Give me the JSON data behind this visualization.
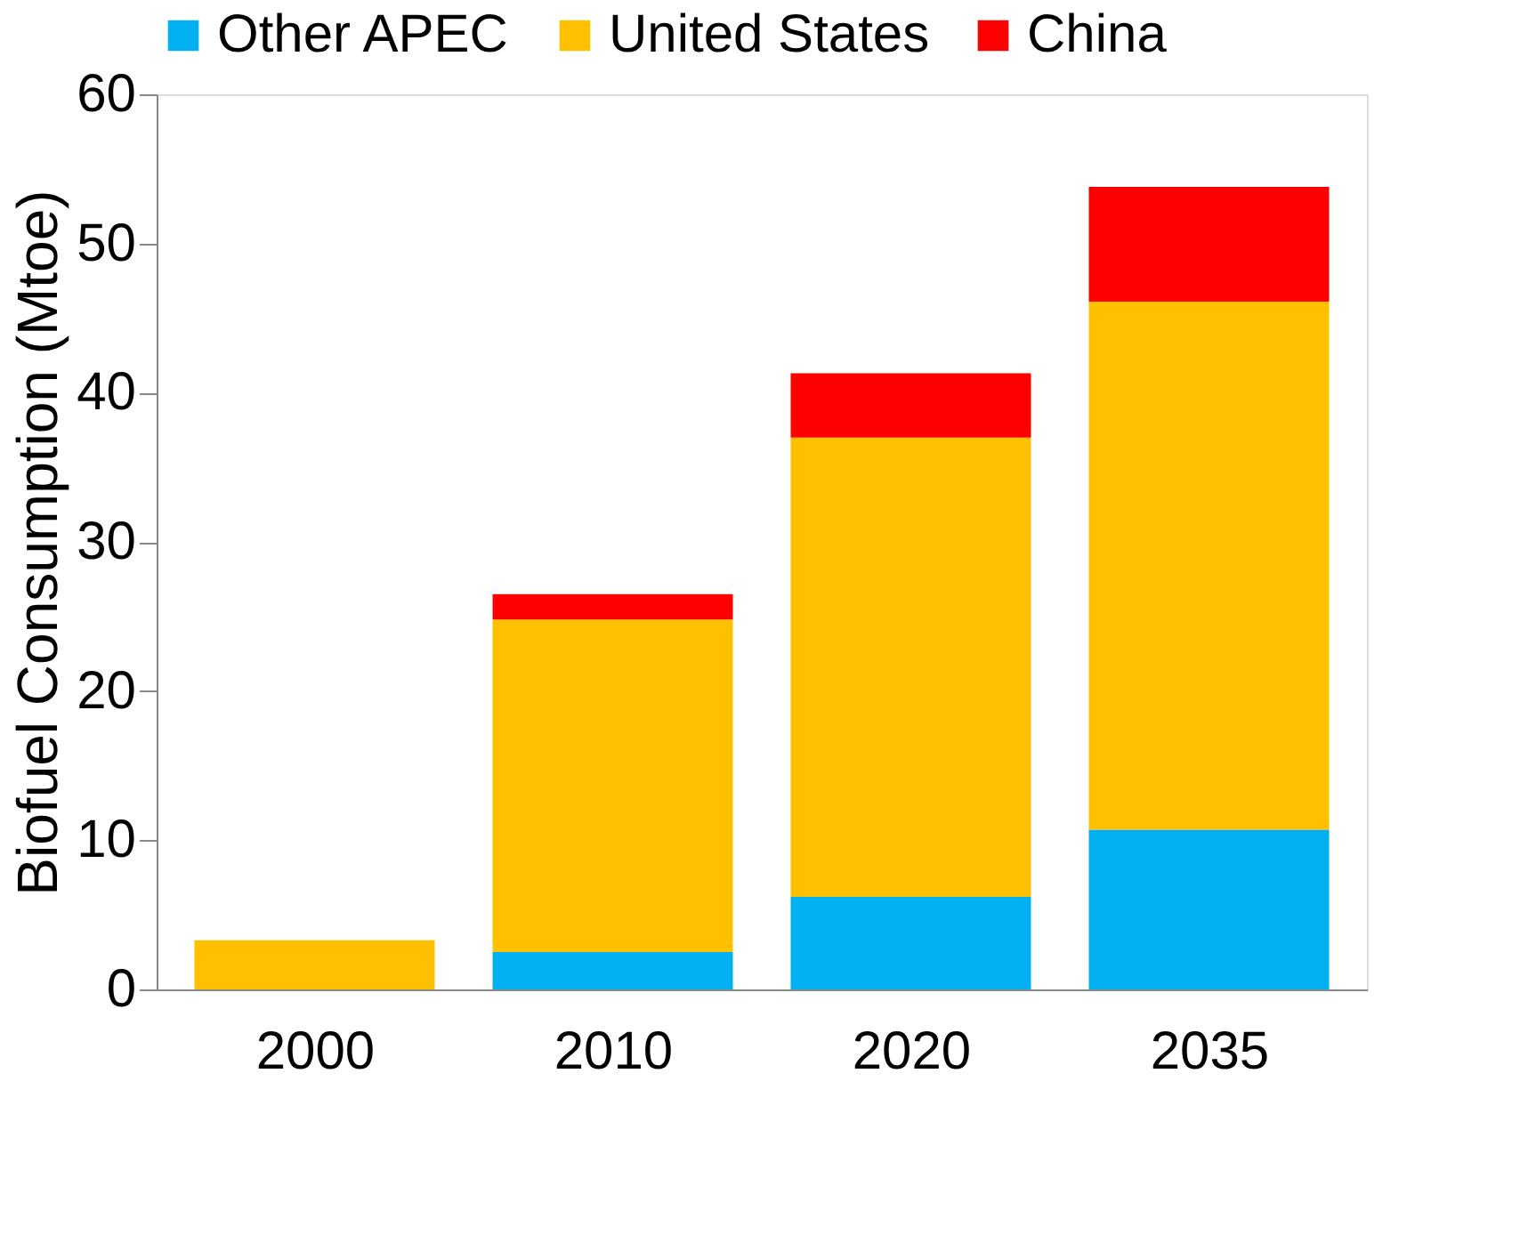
{
  "chart_data": {
    "type": "bar",
    "stacked": true,
    "ylabel": "Biofuel Consumption (Mtoe)",
    "categories": [
      "2000",
      "2010",
      "2020",
      "2035"
    ],
    "series": [
      {
        "name": "Other APEC",
        "color": "#00b0f0",
        "values": [
          0,
          2.5,
          6.2,
          10.7
        ]
      },
      {
        "name": "United States",
        "color": "#ffc000",
        "values": [
          3.3,
          22.3,
          30.8,
          35.4
        ]
      },
      {
        "name": "China",
        "color": "#ff0000",
        "values": [
          0,
          1.7,
          4.3,
          7.7
        ]
      }
    ],
    "ylim": [
      0,
      60
    ],
    "yticks": [
      0,
      10,
      20,
      30,
      40,
      50,
      60
    ],
    "grid": false,
    "legend": "top"
  }
}
